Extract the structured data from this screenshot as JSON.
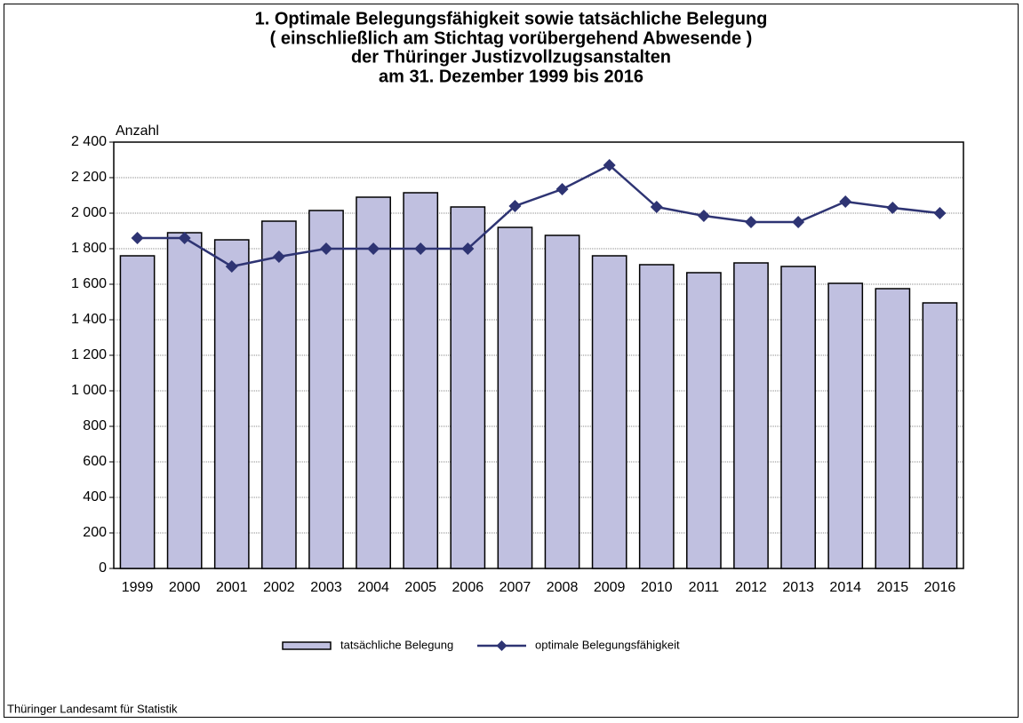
{
  "chart_data": {
    "type": "bar_line",
    "title": [
      "1. Optimale Belegungsfähigkeit sowie tatsächliche Belegung",
      "( einschließlich am Stichtag vorübergehend Abwesende )",
      "der Thüringer Justizvollzugsanstalten",
      "am 31. Dezember 1999 bis 2016"
    ],
    "y_label": "Anzahl",
    "source": "Thüringer Landesamt für Statistik",
    "categories": [
      "1999",
      "2000",
      "2001",
      "2002",
      "2003",
      "2004",
      "2005",
      "2006",
      "2007",
      "2008",
      "2009",
      "2010",
      "2011",
      "2012",
      "2013",
      "2014",
      "2015",
      "2016"
    ],
    "series": [
      {
        "name": "tatsächliche Belegung",
        "type": "bar",
        "color": "#c0c0e0",
        "values": [
          1760,
          1890,
          1850,
          1955,
          2015,
          2090,
          2115,
          2035,
          1920,
          1875,
          1760,
          1710,
          1665,
          1720,
          1700,
          1605,
          1575,
          1495
        ]
      },
      {
        "name": "optimale Belegungsfähigkeit",
        "type": "line",
        "color": "#2e3473",
        "values": [
          1860,
          1860,
          1700,
          1755,
          1800,
          1800,
          1800,
          1800,
          2040,
          2135,
          2270,
          2035,
          1985,
          1950,
          1950,
          2065,
          2030,
          2000
        ]
      }
    ],
    "ylim": [
      0,
      2400
    ],
    "yticks": [
      0,
      200,
      400,
      600,
      800,
      {
        "value": 1000,
        "label": "1 000"
      },
      {
        "value": 1200,
        "label": "1 200"
      },
      {
        "value": 1400,
        "label": "1 400"
      },
      {
        "value": 1600,
        "label": "1 600"
      },
      {
        "value": 1800,
        "label": "1 800"
      },
      {
        "value": 2000,
        "label": "2 000"
      },
      {
        "value": 2200,
        "label": "2 200"
      },
      {
        "value": 2400,
        "label": "2 400"
      }
    ],
    "grid": true,
    "legend": "bottom"
  }
}
